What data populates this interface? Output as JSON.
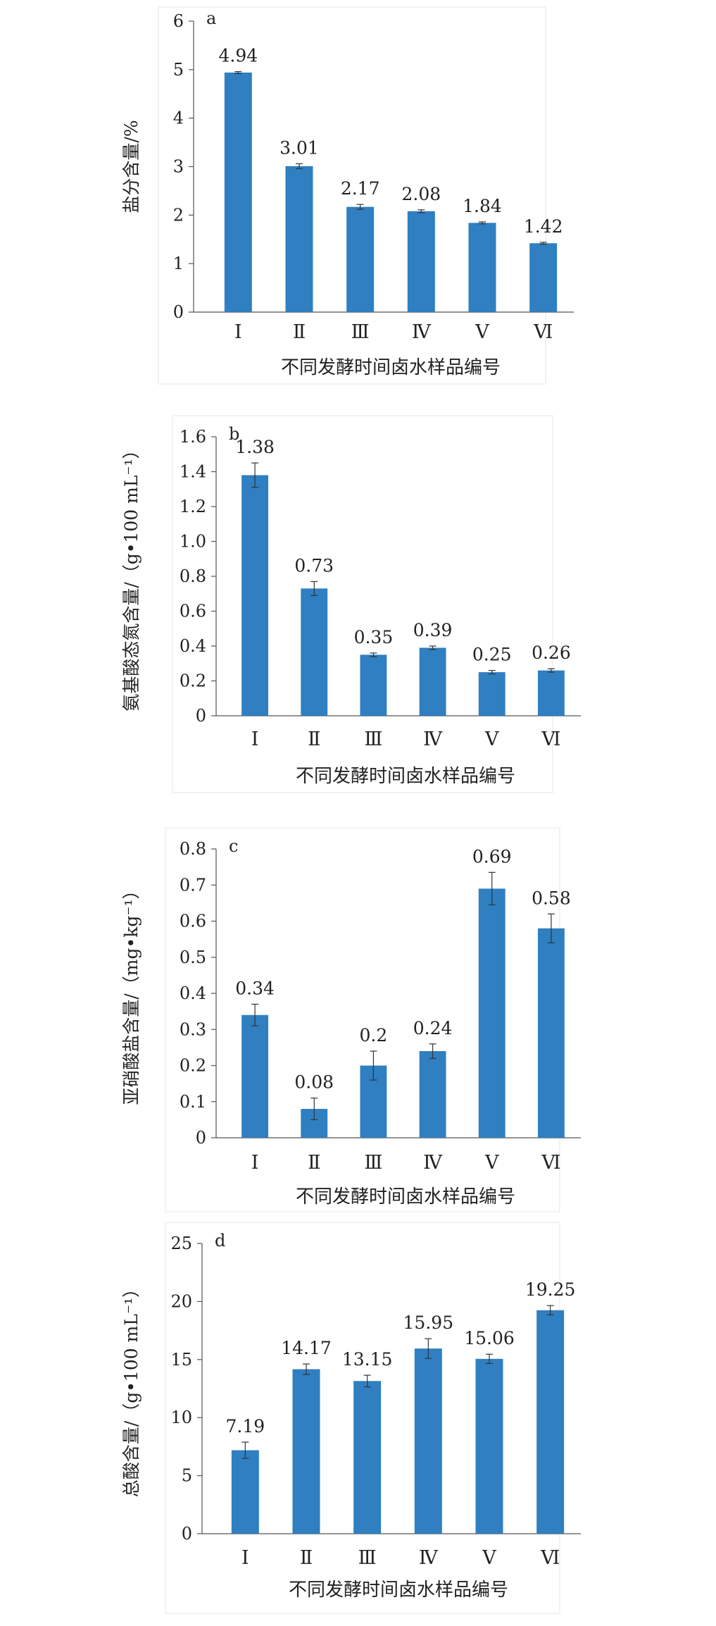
{
  "chart_data": [
    {
      "type": "bar",
      "panel_label": "a",
      "categories": [
        "Ⅰ",
        "Ⅱ",
        "Ⅲ",
        "Ⅳ",
        "Ⅴ",
        "Ⅵ"
      ],
      "values": [
        4.94,
        3.01,
        2.17,
        2.08,
        1.84,
        1.42
      ],
      "errors": [
        0.02,
        0.05,
        0.05,
        0.03,
        0.02,
        0.02
      ],
      "data_labels": [
        "4.94",
        "3.01",
        "2.17",
        "2.08",
        "1.84",
        "1.42"
      ],
      "ylabel": "盐分含量/%",
      "xlabel": "不同发酵时间卤水样品编号",
      "ylim": [
        0,
        6
      ],
      "yticks": [
        0,
        1,
        2,
        3,
        4,
        5,
        6
      ],
      "ytick_labels": [
        "0",
        "1",
        "2",
        "3",
        "4",
        "5",
        "6"
      ],
      "bar_color": "#2f7fc1",
      "grid": false
    },
    {
      "type": "bar",
      "panel_label": "b",
      "categories": [
        "Ⅰ",
        "Ⅱ",
        "Ⅲ",
        "Ⅳ",
        "Ⅴ",
        "Ⅵ"
      ],
      "values": [
        1.38,
        0.73,
        0.35,
        0.39,
        0.25,
        0.26
      ],
      "errors": [
        0.07,
        0.04,
        0.01,
        0.01,
        0.01,
        0.01
      ],
      "data_labels": [
        "1.38",
        "0.73",
        "0.35",
        "0.39",
        "0.25",
        "0.26"
      ],
      "ylabel": "氨基酸态氮含量/（g•100 mL⁻¹）",
      "xlabel": "不同发酵时间卤水样品编号",
      "ylim": [
        0,
        1.6
      ],
      "yticks": [
        0,
        0.2,
        0.4,
        0.6,
        0.8,
        1.0,
        1.2,
        1.4,
        1.6
      ],
      "ytick_labels": [
        "0",
        "0.2",
        "0.4",
        "0.6",
        "0.8",
        "1.0",
        "1.2",
        "1.4",
        "1.6"
      ],
      "bar_color": "#2f7fc1",
      "grid": false
    },
    {
      "type": "bar",
      "panel_label": "c",
      "categories": [
        "Ⅰ",
        "Ⅱ",
        "Ⅲ",
        "Ⅳ",
        "Ⅴ",
        "Ⅵ"
      ],
      "values": [
        0.34,
        0.08,
        0.2,
        0.24,
        0.69,
        0.58
      ],
      "errors": [
        0.03,
        0.03,
        0.04,
        0.02,
        0.045,
        0.04
      ],
      "data_labels": [
        "0.34",
        "0.08",
        "0.2",
        "0.24",
        "0.69",
        "0.58"
      ],
      "ylabel": "亚硝酸盐含量/（mg•kg⁻¹）",
      "xlabel": "不同发酵时间卤水样品编号",
      "ylim": [
        0,
        0.8
      ],
      "yticks": [
        0,
        0.1,
        0.2,
        0.3,
        0.4,
        0.5,
        0.6,
        0.7,
        0.8
      ],
      "ytick_labels": [
        "0",
        "0.1",
        "0.2",
        "0.3",
        "0.4",
        "0.5",
        "0.6",
        "0.7",
        "0.8"
      ],
      "bar_color": "#2f7fc1",
      "grid": false
    },
    {
      "type": "bar",
      "panel_label": "d",
      "categories": [
        "Ⅰ",
        "Ⅱ",
        "Ⅲ",
        "Ⅳ",
        "Ⅴ",
        "Ⅵ"
      ],
      "values": [
        7.19,
        14.17,
        13.15,
        15.95,
        15.06,
        19.25
      ],
      "errors": [
        0.7,
        0.45,
        0.5,
        0.85,
        0.4,
        0.4
      ],
      "data_labels": [
        "7.19",
        "14.17",
        "13.15",
        "15.95",
        "15.06",
        "19.25"
      ],
      "ylabel": "总酸含量/（g•100 mL⁻¹）",
      "xlabel": "不同发酵时间卤水样品编号",
      "ylim": [
        0,
        25
      ],
      "yticks": [
        0,
        5,
        10,
        15,
        20,
        25
      ],
      "ytick_labels": [
        "0",
        "5",
        "10",
        "15",
        "20",
        "25"
      ],
      "bar_color": "#2f7fc1",
      "grid": false
    }
  ]
}
